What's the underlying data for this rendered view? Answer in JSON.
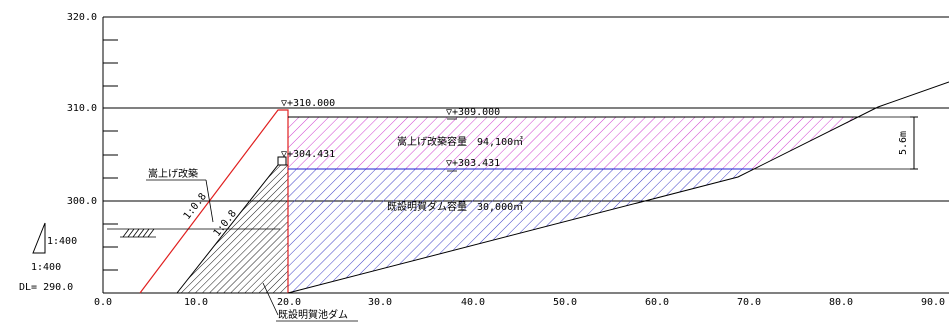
{
  "axes": {
    "x_ticks": [
      "0.0",
      "10.0",
      "20.0",
      "30.0",
      "40.0",
      "50.0",
      "60.0",
      "70.0",
      "80.0",
      "90.0"
    ],
    "y_ticks": [
      "320.0",
      "310.0",
      "300.0"
    ],
    "datum_label": "DL= 290.0"
  },
  "scale": {
    "label": "1:400"
  },
  "levels": {
    "crest_raised": "▽+310.000",
    "crest_existing": "▽+304.431",
    "water_raised": "▽+309.000",
    "water_existing": "▽+303.431"
  },
  "annotations": {
    "raised_capacity": "嵩上げ改築容量　94,100㎥",
    "existing_capacity": "既設明賀ダム容量　30,000㎥",
    "raise_label": "嵩上げ改築",
    "slope_raised": "1:0.8",
    "slope_existing": "1:0.8",
    "dam_label": "既設明賀池ダム",
    "height_dim": "5.6m"
  },
  "colors": {
    "raised_hatch": "#d040d0",
    "existing_hatch": "#4040c8",
    "raised_dam": "#e02020",
    "water_line": "#2020d0",
    "grid": "#000000"
  }
}
